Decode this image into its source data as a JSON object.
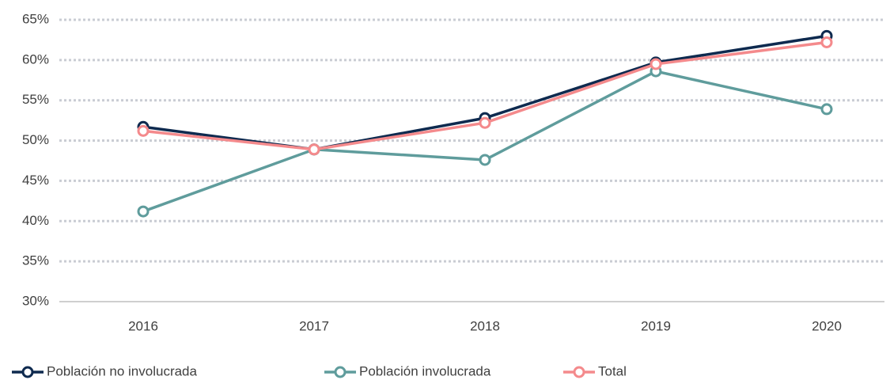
{
  "chart_data": {
    "type": "line",
    "categories": [
      "2016",
      "2017",
      "2018",
      "2019",
      "2020"
    ],
    "series": [
      {
        "name": "Población no involucrada",
        "color": "#0e2a4f",
        "values": [
          51.7,
          48.9,
          52.8,
          59.7,
          63.0
        ]
      },
      {
        "name": "Población involucrada",
        "color": "#5f9c9c",
        "values": [
          41.2,
          48.9,
          47.6,
          58.6,
          53.9
        ]
      },
      {
        "name": "Total",
        "color": "#f48a8c",
        "values": [
          51.2,
          48.9,
          52.2,
          59.5,
          62.2
        ]
      }
    ],
    "ylim": [
      30,
      65
    ],
    "yticks": [
      {
        "value": 30,
        "label": "30%"
      },
      {
        "value": 35,
        "label": "35%"
      },
      {
        "value": 40,
        "label": "40%"
      },
      {
        "value": 45,
        "label": "45%"
      },
      {
        "value": 50,
        "label": "50%"
      },
      {
        "value": 55,
        "label": "55%"
      },
      {
        "value": 60,
        "label": "60%"
      },
      {
        "value": 65,
        "label": "65%"
      }
    ],
    "grid": true,
    "legend": "bottom"
  }
}
